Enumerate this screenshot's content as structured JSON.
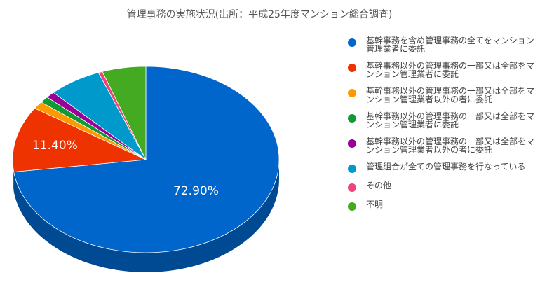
{
  "chart_data": {
    "type": "pie",
    "title": "管理事務の実施状況(出所：平成25年度マンション総合調査)",
    "legend_position": "right",
    "slices": [
      {
        "label": "基幹事務を含め管理事務の全てをマンション管理業者に委託",
        "value": 72.9,
        "color": "#0066cc",
        "data_label": "72.90%"
      },
      {
        "label": "基幹事務以外の管理事務の一部又は全部をマンション管理業者に委託",
        "value": 11.4,
        "color": "#ee3300",
        "data_label": "11.40%"
      },
      {
        "label": "基幹事務以外の管理事務の一部又は全部をマンション管理業者以外の者に委託",
        "value": 1.3,
        "color": "#ff9900",
        "data_label": ""
      },
      {
        "label": "基幹事務以外の管理事務の一部又は全部をマンション管理業者に委託",
        "value": 1.1,
        "color": "#119933",
        "data_label": ""
      },
      {
        "label": "基幹事務以外の管理事務の一部又は全部をマンション管理業者以外の者に委託",
        "value": 1.1,
        "color": "#990099",
        "data_label": ""
      },
      {
        "label": "管理組合が全ての管理事務を行なっている",
        "value": 6.4,
        "color": "#0099cc",
        "data_label": ""
      },
      {
        "label": "その他",
        "value": 0.5,
        "color": "#ee4477",
        "data_label": ""
      },
      {
        "label": "不明",
        "value": 5.3,
        "color": "#44aa22",
        "data_label": ""
      }
    ]
  }
}
